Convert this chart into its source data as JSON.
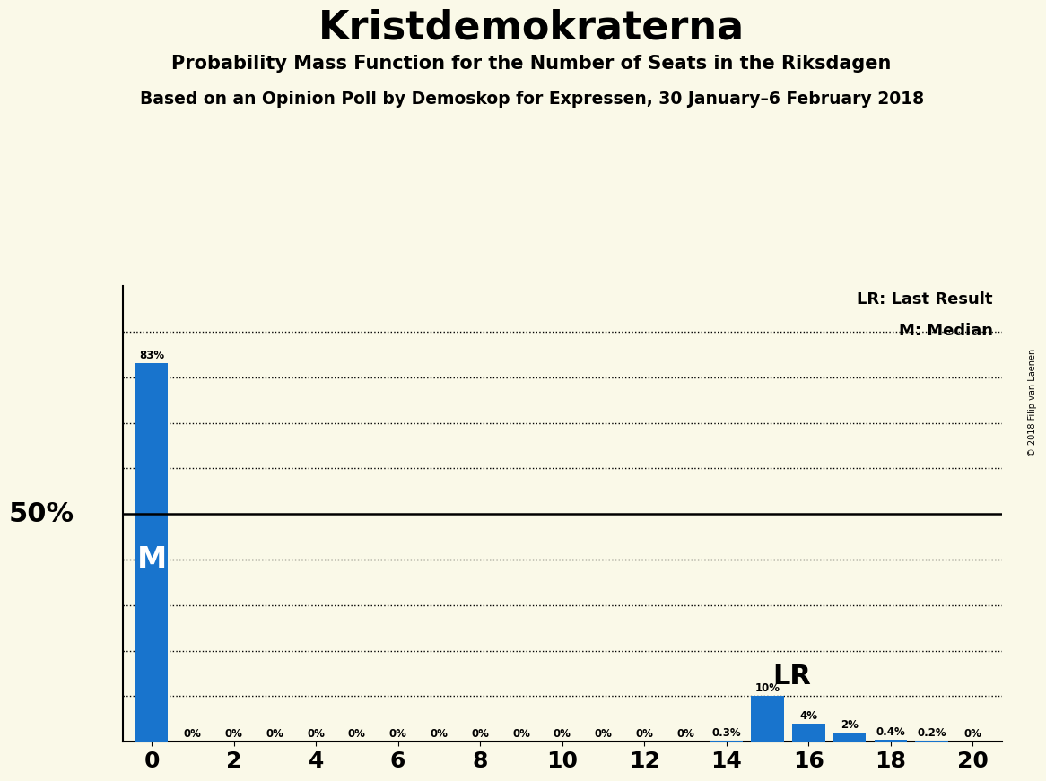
{
  "title": "Kristdemokraterna",
  "subtitle1": "Probability Mass Function for the Number of Seats in the Riksdagen",
  "subtitle2": "Based on an Opinion Poll by Demoskop for Expressen, 30 January–6 February 2018",
  "watermark": "© 2018 Filip van Laenen",
  "bar_color": "#1874CD",
  "background_color": "#faf9e8",
  "x_values": [
    0,
    1,
    2,
    3,
    4,
    5,
    6,
    7,
    8,
    9,
    10,
    11,
    12,
    13,
    14,
    15,
    16,
    17,
    18,
    19,
    20
  ],
  "y_values": [
    83,
    0,
    0,
    0,
    0,
    0,
    0,
    0,
    0,
    0,
    0,
    0,
    0,
    0,
    0.3,
    10,
    4,
    2,
    0.4,
    0.2,
    0
  ],
  "bar_labels": [
    "83%",
    "0%",
    "0%",
    "0%",
    "0%",
    "0%",
    "0%",
    "0%",
    "0%",
    "0%",
    "0%",
    "0%",
    "0%",
    "0%",
    "0.3%",
    "10%",
    "4%",
    "2%",
    "0.4%",
    "0.2%",
    "0%"
  ],
  "LR_x": 15,
  "LR_y": 10,
  "M_x": 0,
  "median_label": "M",
  "lr_label": "LR",
  "fifty_pct_label": "50%",
  "legend_lr": "LR: Last Result",
  "legend_m": "M: Median",
  "xlim": [
    -0.7,
    20.7
  ],
  "ylim": [
    0,
    100
  ],
  "solid_line_y": 50,
  "dotted_lines_y": [
    10,
    20,
    30,
    40,
    60,
    70,
    80,
    90
  ],
  "xticks": [
    0,
    2,
    4,
    6,
    8,
    10,
    12,
    14,
    16,
    18,
    20
  ]
}
